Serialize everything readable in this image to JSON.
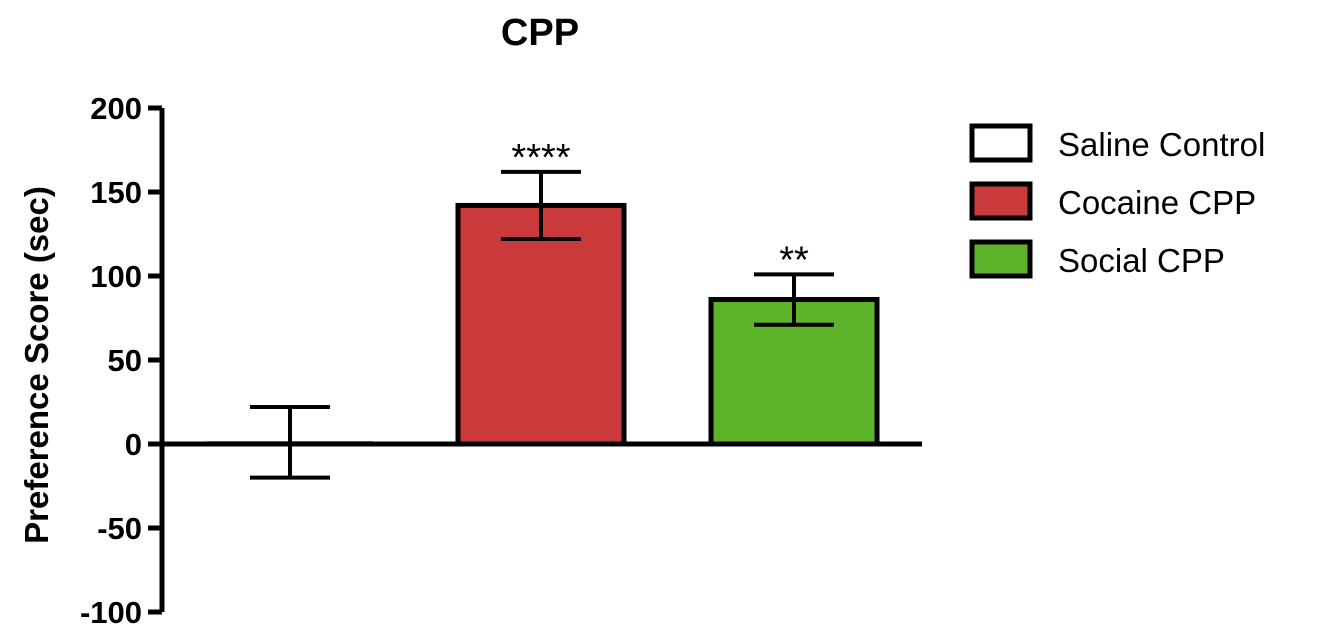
{
  "chart_data": {
    "type": "bar",
    "title": "CPP",
    "ylabel": "Preference Score (sec)",
    "xlabel": "",
    "ylim": [
      -100,
      200
    ],
    "yticks": [
      200,
      150,
      100,
      50,
      0,
      -50,
      -100
    ],
    "grid": false,
    "legend_position": "right",
    "series": [
      {
        "name": "Saline Control",
        "value": 1,
        "error": 21,
        "color": "#ffffff",
        "significance": ""
      },
      {
        "name": "Cocaine CPP",
        "value": 142,
        "error": 20,
        "color": "#cb3a3a",
        "significance": "****"
      },
      {
        "name": "Social CPP",
        "value": 86,
        "error": 15,
        "color": "#5db32a",
        "significance": "**"
      }
    ]
  }
}
